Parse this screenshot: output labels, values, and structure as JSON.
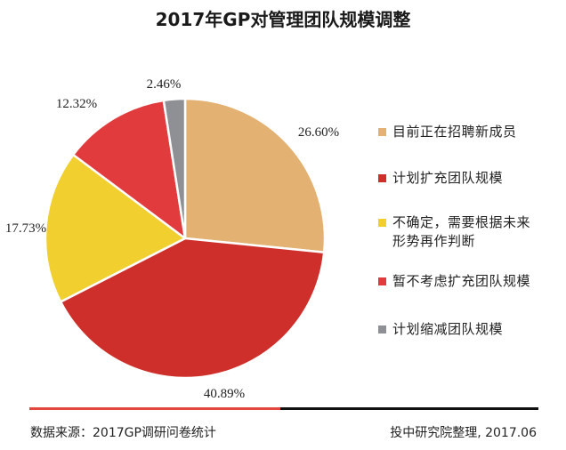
{
  "chart_data": {
    "type": "pie",
    "title": "2017年GP对管理团队规模调整",
    "categories": [
      "目前正在招聘新成员",
      "计划扩充团队规模",
      "不确定，需要根据未来形势再作判断",
      "暂不考虑扩充团队规模",
      "计划缩减团队规模"
    ],
    "values": [
      26.6,
      40.89,
      17.73,
      12.32,
      2.46
    ],
    "value_labels": [
      "26.60%",
      "40.89%",
      "17.73%",
      "12.32%",
      "2.46%"
    ],
    "colors": [
      "#e3b172",
      "#cf2f2a",
      "#f0cf2e",
      "#e23b3e",
      "#8e9096"
    ],
    "legend_labels": [
      "目前正在招聘新成员",
      "计划扩充团队规模",
      "不确定，需要根据未来\n形势再作判断",
      "暂不考虑扩充团队规模",
      "计划缩减团队规模"
    ],
    "legend_position": "right",
    "start_angle": "12 o'clock",
    "direction": "clockwise"
  },
  "footer": {
    "source": "数据来源：2017GP调研问卷统计",
    "credit": "投中研究院整理, 2017.06"
  }
}
